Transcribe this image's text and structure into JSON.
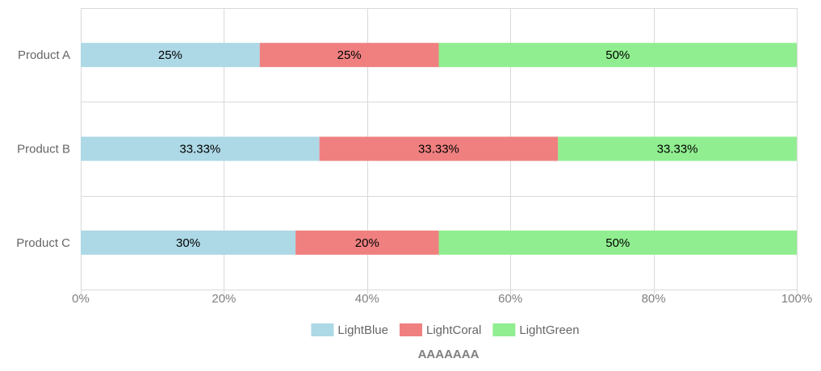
{
  "chart_data": {
    "type": "bar",
    "orientation": "horizontal",
    "stacked": true,
    "categories": [
      "Product A",
      "Product B",
      "Product C"
    ],
    "series": [
      {
        "name": "LightBlue",
        "color": "#add8e6",
        "values": [
          25,
          33.33,
          30
        ],
        "labels": [
          "25%",
          "33.33%",
          "30%"
        ]
      },
      {
        "name": "LightCoral",
        "color": "#f08080",
        "values": [
          25,
          33.33,
          20
        ],
        "labels": [
          "25%",
          "33.33%",
          "20%"
        ]
      },
      {
        "name": "LightGreen",
        "color": "#90ee90",
        "values": [
          50,
          33.33,
          50
        ],
        "labels": [
          "50%",
          "33.33%",
          "50%"
        ]
      }
    ],
    "xlim": [
      0,
      100
    ],
    "xticks": [
      0,
      20,
      40,
      60,
      80,
      100
    ],
    "xtick_labels": [
      "0%",
      "20%",
      "40%",
      "60%",
      "80%",
      "100%"
    ],
    "xlabel": "AAAAAAA",
    "ylabel": "",
    "title": "",
    "grid": true,
    "legend_position": "bottom"
  }
}
